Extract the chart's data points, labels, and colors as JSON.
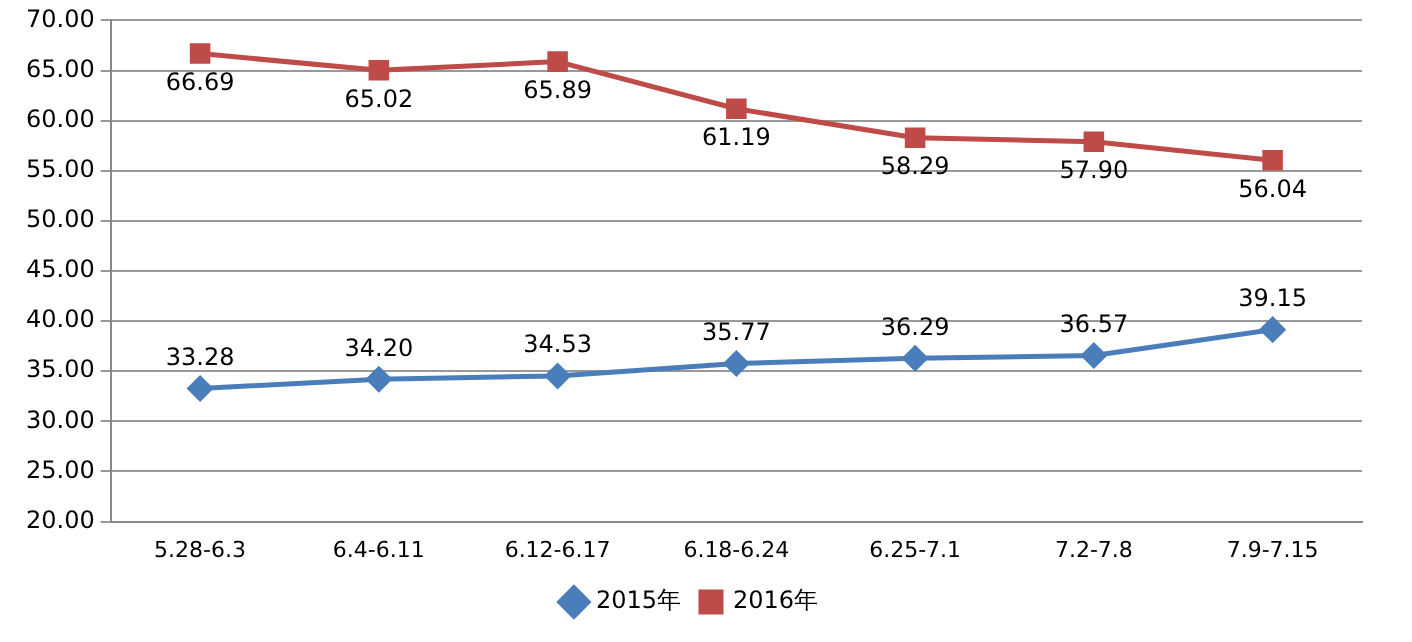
{
  "chart_data": {
    "type": "line",
    "categories": [
      "5.28-6.3",
      "6.4-6.11",
      "6.12-6.17",
      "6.18-6.24",
      "6.25-7.1",
      "7.2-7.8",
      "7.9-7.15"
    ],
    "series": [
      {
        "name": "2015年",
        "color": "#4a7ebb",
        "marker": "diamond",
        "values": [
          33.28,
          34.2,
          34.53,
          35.77,
          36.29,
          36.57,
          39.15
        ],
        "value_labels": [
          "33.28",
          "34.20",
          "34.53",
          "35.77",
          "36.29",
          "36.57",
          "39.15"
        ]
      },
      {
        "name": "2016年",
        "color": "#be4b48",
        "marker": "square",
        "values": [
          66.69,
          65.02,
          65.89,
          61.19,
          58.29,
          57.9,
          56.04
        ],
        "value_labels": [
          "66.69",
          "65.02",
          "65.89",
          "61.19",
          "58.29",
          "57.90",
          "56.04"
        ]
      }
    ],
    "ylim": [
      20,
      70
    ],
    "yticks": [
      {
        "value": 20,
        "label": "20.00"
      },
      {
        "value": 25,
        "label": "25.00"
      },
      {
        "value": 30,
        "label": "30.00"
      },
      {
        "value": 35,
        "label": "35.00"
      },
      {
        "value": 40,
        "label": "40.00"
      },
      {
        "value": 45,
        "label": "45.00"
      },
      {
        "value": 50,
        "label": "50.00"
      },
      {
        "value": 55,
        "label": "55.00"
      },
      {
        "value": 60,
        "label": "60.00"
      },
      {
        "value": 65,
        "label": "65.00"
      },
      {
        "value": 70,
        "label": "70.00"
      }
    ],
    "grid": "y",
    "legend": "bottom",
    "line_style": "solid"
  }
}
